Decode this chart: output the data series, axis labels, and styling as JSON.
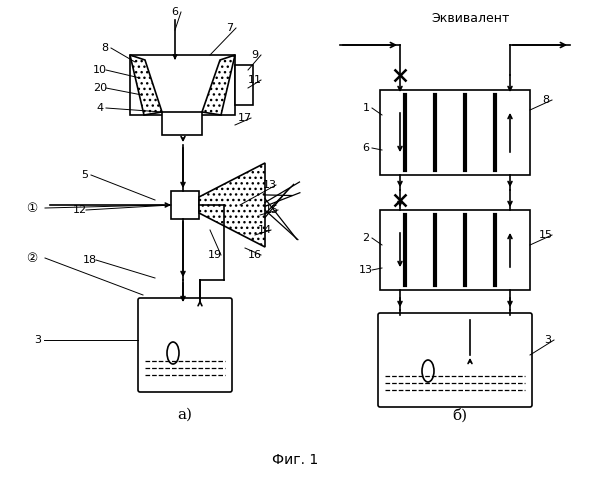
{
  "title": "Фиг. 1",
  "subtitle_b": "Эквивалент",
  "label_a": "а)",
  "label_b": "б)",
  "bg_color": "#ffffff",
  "line_color": "#000000",
  "figsize": [
    5.91,
    5.0
  ],
  "dpi": 100
}
